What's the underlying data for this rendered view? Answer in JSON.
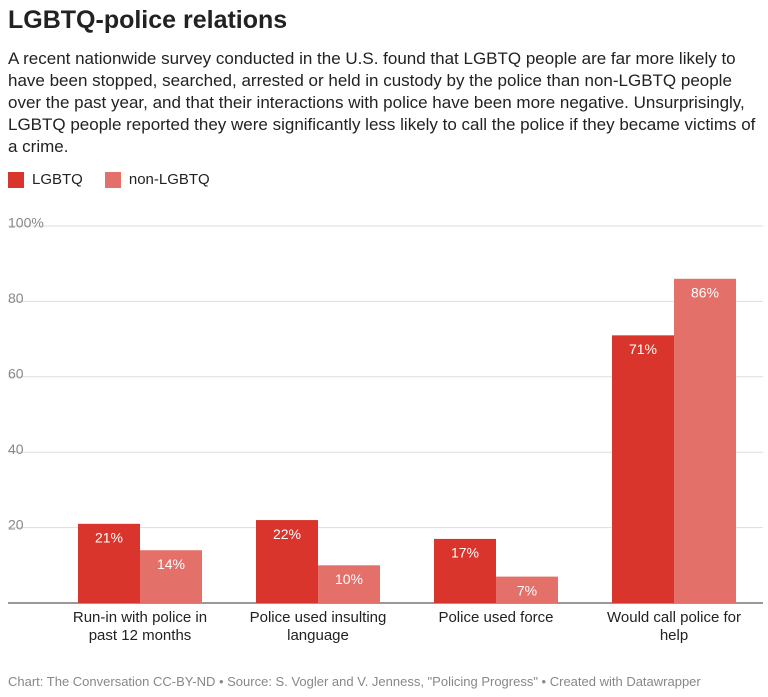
{
  "chart_data": {
    "type": "bar",
    "title": "LGBTQ-police relations",
    "subtitle": "A recent nationwide survey conducted in the U.S. found that LGBTQ people are far more likely to have been stopped, searched, arrested or held in custody by the police than non-LGBTQ people over the past year, and that their interactions with police have been more negative. Unsurprisingly, LGBTQ people reported they were significantly less likely to call the police if they became victims of a crime.",
    "categories": [
      "Run-in with police in past 12 months",
      "Police used insulting language",
      "Police used force",
      "Would call police for help"
    ],
    "series": [
      {
        "name": "LGBTQ",
        "color": "#d9352c",
        "values": [
          21,
          22,
          17,
          71
        ],
        "value_labels": [
          "21%",
          "22%",
          "17%",
          "71%"
        ]
      },
      {
        "name": "non-LGBTQ",
        "color": "#e4706a",
        "values": [
          14,
          10,
          7,
          86
        ],
        "value_labels": [
          "14%",
          "10%",
          "7%",
          "86%"
        ]
      }
    ],
    "ylim": [
      0,
      100
    ],
    "yticks": [
      20,
      40,
      60,
      80,
      {
        "value": 100,
        "label": "100%"
      }
    ],
    "grid": true,
    "source": "Chart: The Conversation CC-BY-ND • Source: S. Vogler and V. Jenness, \"Policing Progress\" • Created with Datawrapper"
  }
}
